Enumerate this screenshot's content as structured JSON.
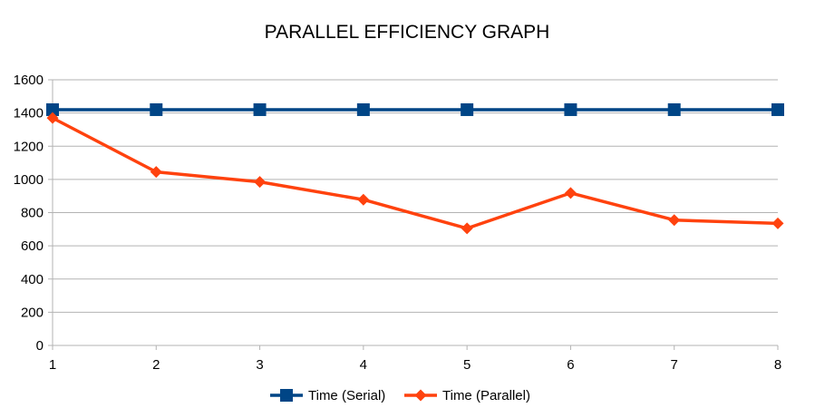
{
  "chart_data": {
    "type": "line",
    "title": "PARALLEL EFFICIENCY GRAPH",
    "xlabel": "",
    "ylabel": "",
    "x": [
      1,
      2,
      3,
      4,
      5,
      6,
      7,
      8
    ],
    "ylim": [
      0,
      1600
    ],
    "yticks": [
      0,
      200,
      400,
      600,
      800,
      1000,
      1200,
      1400,
      1600
    ],
    "grid": true,
    "legend_position": "bottom",
    "series": [
      {
        "name": "Time (Serial)",
        "values": [
          1420,
          1420,
          1420,
          1420,
          1420,
          1420,
          1420,
          1420
        ],
        "color": "#004586",
        "marker": "square"
      },
      {
        "name": "Time (Parallel)",
        "values": [
          1370,
          1045,
          985,
          878,
          705,
          918,
          755,
          735
        ],
        "color": "#ff420e",
        "marker": "diamond"
      }
    ]
  }
}
